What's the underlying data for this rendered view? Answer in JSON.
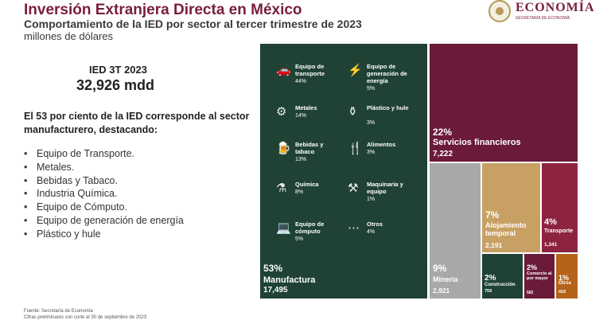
{
  "header": {
    "title": "Inversión Extranjera Directa en México",
    "subtitle": "Comportamiento de la IED por sector al tercer trimestre de 2023",
    "units": "millones de dólares"
  },
  "logo": {
    "name": "ECONOMÍA",
    "tagline": "SECRETARÍA DE ECONOMÍA"
  },
  "kpi": {
    "label": "IED 3T 2023",
    "value": "32,926 mdd"
  },
  "intro": "El 53 por ciento de la IED corresponde al sector manufacturero, destacando:",
  "bullets": [
    "Equipo de Transporte.",
    "Metales.",
    "Bebidas y Tabaco.",
    "Industria Química.",
    "Equipo de Cómputo.",
    "Equipo de generación de energía",
    "Plástico y hule"
  ],
  "footer": {
    "source": "Fuente: Secretaría de Economía",
    "note": "Cifras preliminares con corte al 30 de septiembre de 2023"
  },
  "colors": {
    "manufactura": "#1f4235",
    "financieros": "#6b1a3a",
    "mineria": "#a8a8a8",
    "alojamiento": "#c8a064",
    "transporte": "#8c2440",
    "construccion": "#1f4235",
    "comercio": "#6b1a3a",
    "otros": "#b5631a"
  },
  "chart_data": {
    "type": "treemap",
    "sectors": [
      {
        "pct": "53%",
        "name": "Manufactura",
        "value": 17495,
        "value_label": "17,495"
      },
      {
        "pct": "22%",
        "name": "Servicios financieros",
        "value": 7222,
        "value_label": "7,222"
      },
      {
        "pct": "9%",
        "name": "Minería",
        "value": 2921,
        "value_label": "2,921"
      },
      {
        "pct": "7%",
        "name": "Alojamiento temporal",
        "value": 2191,
        "value_label": "2,191"
      },
      {
        "pct": "4%",
        "name": "Transporte",
        "value": 1341,
        "value_label": "1,341"
      },
      {
        "pct": "2%",
        "name": "Construcción",
        "value": 759,
        "value_label": "759"
      },
      {
        "pct": "2%",
        "name": "Comercio al por mayor",
        "value": 582,
        "value_label": "582"
      },
      {
        "pct": "1%",
        "name": "Otros",
        "value": 416,
        "value_label": "416"
      }
    ],
    "manufactura_breakdown": [
      {
        "name": "Equipo de transporte",
        "pct": "44%",
        "icon": "car-icon"
      },
      {
        "name": "Equipo de generación de energía",
        "pct": "5%",
        "icon": "generator-icon"
      },
      {
        "name": "Metales",
        "pct": "14%",
        "icon": "gear-icon"
      },
      {
        "name": "Plástico y hule",
        "pct": "3%",
        "icon": "bottle-icon"
      },
      {
        "name": "Bebidas y tabaco",
        "pct": "13%",
        "icon": "beverage-icon"
      },
      {
        "name": "Alimentos",
        "pct": "3%",
        "icon": "food-icon"
      },
      {
        "name": "Química",
        "pct": "8%",
        "icon": "flask-icon"
      },
      {
        "name": "Maquinaria y equipo",
        "pct": "1%",
        "icon": "machinery-icon"
      },
      {
        "name": "Equipo de cómputo",
        "pct": "5%",
        "icon": "computer-icon"
      },
      {
        "name": "Otros",
        "pct": "4%",
        "icon": "dots-icon"
      }
    ]
  }
}
